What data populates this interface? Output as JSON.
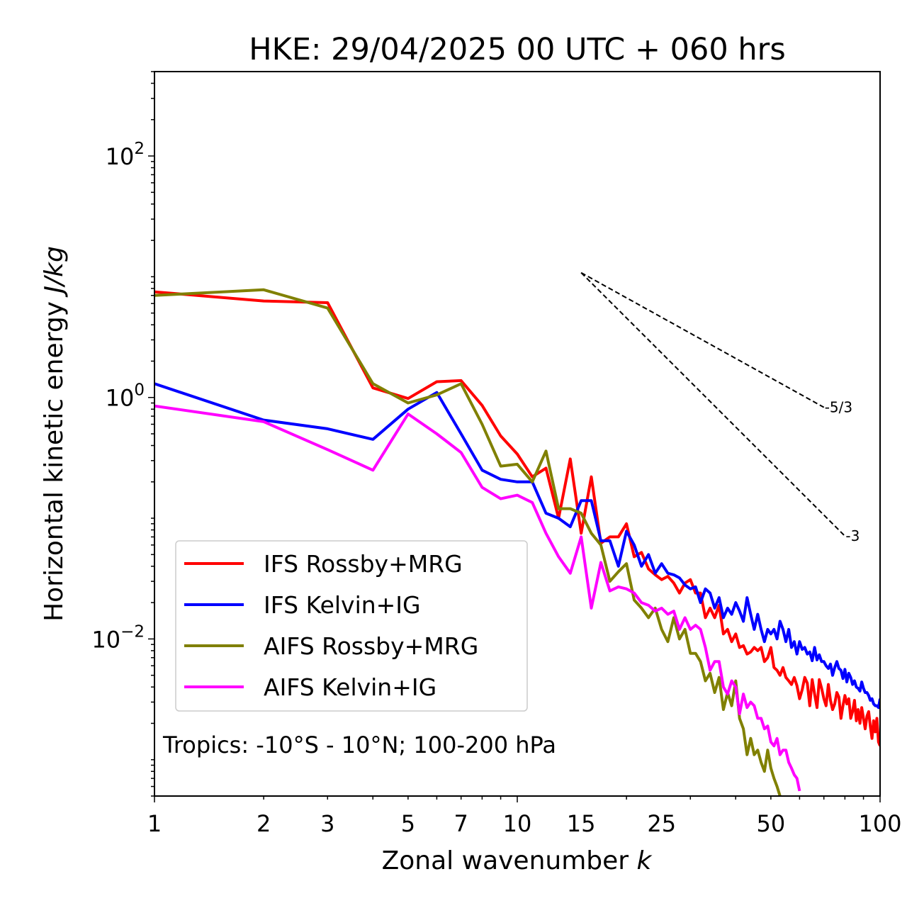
{
  "chart_data": {
    "type": "line",
    "title": "HKE: 29/04/2025 00 UTC + 060 hrs",
    "xlabel": "Zonal wavenumber",
    "xlabel_symbol": "k",
    "ylabel": "Horizontal kinetic energy",
    "ylabel_unit": "J/kg",
    "x_scale": "log",
    "y_scale": "log",
    "xlim": [
      1,
      100
    ],
    "ylim": [
      0.0005,
      500
    ],
    "x_ticks": [
      {
        "value": 1,
        "label": "1"
      },
      {
        "value": 2,
        "label": "2"
      },
      {
        "value": 3,
        "label": "3"
      },
      {
        "value": 5,
        "label": "5"
      },
      {
        "value": 7,
        "label": "7"
      },
      {
        "value": 10,
        "label": "10"
      },
      {
        "value": 15,
        "label": "15"
      },
      {
        "value": 25,
        "label": "25"
      },
      {
        "value": 50,
        "label": "50"
      },
      {
        "value": 100,
        "label": "100"
      }
    ],
    "y_ticks": [
      {
        "value": 100,
        "mantissa": "10",
        "exponent": "2"
      },
      {
        "value": 1,
        "mantissa": "10",
        "exponent": "0"
      },
      {
        "value": 0.01,
        "mantissa": "10",
        "exponent": "−2"
      }
    ],
    "grid": false,
    "legend_position": "lower-left",
    "annotation": "Tropics: -10°S - 10°N; 100-200 hPa",
    "reference_slopes": [
      {
        "label": "-5/3",
        "exponent": -1.6667,
        "x": [
          15,
          70
        ],
        "y0": 10.8
      },
      {
        "label": "-3",
        "exponent": -3,
        "x": [
          15,
          80
        ],
        "y0": 10.8
      }
    ],
    "series": [
      {
        "name": "IFS Rossby+MRG",
        "color": "#ff0000",
        "x": [
          1,
          2,
          3,
          4,
          5,
          6,
          7,
          8,
          9,
          10,
          11,
          12,
          13,
          14,
          15,
          16,
          17,
          18,
          19,
          20,
          21,
          22,
          23,
          24,
          25,
          26,
          27,
          28,
          29,
          30,
          31,
          32,
          33,
          34,
          35,
          36,
          37,
          38,
          39,
          40,
          41,
          42,
          43,
          44,
          45,
          46,
          47,
          48,
          49,
          50,
          51,
          52,
          53,
          54,
          55,
          56,
          57,
          58,
          59,
          60,
          61,
          62,
          63,
          64,
          65,
          66,
          67,
          68,
          69,
          70,
          71,
          72,
          73,
          74,
          75,
          76,
          77,
          78,
          79,
          80,
          81,
          82,
          83,
          84,
          85,
          86,
          87,
          88,
          89,
          90,
          91,
          92,
          93,
          94,
          95,
          96,
          97,
          98,
          99,
          100
        ],
        "y": [
          7.5,
          6.3,
          6.1,
          1.2,
          0.98,
          1.35,
          1.38,
          0.86,
          0.48,
          0.34,
          0.22,
          0.26,
          0.1,
          0.31,
          0.075,
          0.22,
          0.062,
          0.07,
          0.07,
          0.09,
          0.048,
          0.052,
          0.038,
          0.034,
          0.031,
          0.033,
          0.029,
          0.024,
          0.029,
          0.031,
          0.024,
          0.024,
          0.015,
          0.018,
          0.015,
          0.019,
          0.011,
          0.012,
          0.0095,
          0.011,
          0.0085,
          0.0088,
          0.0075,
          0.0078,
          0.0085,
          0.008,
          0.0085,
          0.0065,
          0.007,
          0.0085,
          0.0058,
          0.0055,
          0.005,
          0.0058,
          0.0048,
          0.0045,
          0.0042,
          0.0048,
          0.0041,
          0.0032,
          0.0038,
          0.0048,
          0.0043,
          0.0028,
          0.0046,
          0.0035,
          0.0027,
          0.0046,
          0.0039,
          0.0032,
          0.0028,
          0.0042,
          0.0031,
          0.0026,
          0.0029,
          0.0036,
          0.0033,
          0.0022,
          0.0028,
          0.0034,
          0.0029,
          0.0032,
          0.0022,
          0.0025,
          0.0031,
          0.0021,
          0.0026,
          0.002,
          0.0027,
          0.0022,
          0.0018,
          0.0023,
          0.0025,
          0.0019,
          0.0015,
          0.0021,
          0.0017,
          0.0022,
          0.0014,
          0.0013
        ]
      },
      {
        "name": "IFS Kelvin+IG",
        "color": "#0000ff",
        "x": [
          1,
          2,
          3,
          4,
          5,
          6,
          7,
          8,
          9,
          10,
          11,
          12,
          13,
          14,
          15,
          16,
          17,
          18,
          19,
          20,
          21,
          22,
          23,
          24,
          25,
          26,
          27,
          28,
          29,
          30,
          31,
          32,
          33,
          34,
          35,
          36,
          37,
          38,
          39,
          40,
          41,
          42,
          43,
          44,
          45,
          46,
          47,
          48,
          49,
          50,
          51,
          52,
          53,
          54,
          55,
          56,
          57,
          58,
          59,
          60,
          61,
          62,
          63,
          64,
          65,
          66,
          67,
          68,
          69,
          70,
          71,
          72,
          73,
          74,
          75,
          76,
          77,
          78,
          79,
          80,
          81,
          82,
          83,
          84,
          85,
          86,
          87,
          88,
          89,
          90,
          91,
          92,
          93,
          94,
          95,
          96,
          97,
          98,
          99,
          100
        ],
        "y": [
          1.3,
          0.65,
          0.55,
          0.45,
          0.8,
          1.1,
          0.5,
          0.25,
          0.21,
          0.2,
          0.2,
          0.11,
          0.1,
          0.085,
          0.14,
          0.14,
          0.065,
          0.065,
          0.04,
          0.078,
          0.06,
          0.04,
          0.05,
          0.035,
          0.042,
          0.035,
          0.034,
          0.032,
          0.028,
          0.026,
          0.027,
          0.02,
          0.026,
          0.024,
          0.018,
          0.022,
          0.015,
          0.018,
          0.016,
          0.02,
          0.017,
          0.014,
          0.022,
          0.016,
          0.012,
          0.016,
          0.012,
          0.0095,
          0.012,
          0.011,
          0.012,
          0.01,
          0.014,
          0.012,
          0.0095,
          0.012,
          0.0085,
          0.0095,
          0.0075,
          0.0095,
          0.0082,
          0.0085,
          0.0075,
          0.0078,
          0.0066,
          0.0085,
          0.0067,
          0.0074,
          0.0065,
          0.0065,
          0.006,
          0.0057,
          0.0062,
          0.005,
          0.0058,
          0.0065,
          0.0057,
          0.0055,
          0.0047,
          0.0056,
          0.0044,
          0.0052,
          0.0048,
          0.0042,
          0.0045,
          0.004,
          0.0039,
          0.0037,
          0.0044,
          0.0039,
          0.0036,
          0.0036,
          0.0034,
          0.0031,
          0.0032,
          0.0029,
          0.0028,
          0.0028,
          0.0027,
          0.0032
        ]
      },
      {
        "name": "AIFS Rossby+MRG",
        "color": "#808000",
        "x": [
          1,
          2,
          3,
          4,
          5,
          6,
          7,
          8,
          9,
          10,
          11,
          12,
          13,
          14,
          15,
          16,
          17,
          18,
          19,
          20,
          21,
          22,
          23,
          24,
          25,
          26,
          27,
          28,
          29,
          30,
          31,
          32,
          33,
          34,
          35,
          36,
          37,
          38,
          39,
          40,
          41,
          42,
          43,
          44,
          45,
          46,
          47,
          48,
          49,
          50,
          51,
          52,
          53,
          54
        ],
        "y": [
          7.0,
          7.8,
          5.5,
          1.3,
          0.9,
          1.05,
          1.3,
          0.6,
          0.27,
          0.28,
          0.2,
          0.36,
          0.12,
          0.12,
          0.11,
          0.075,
          0.06,
          0.03,
          0.036,
          0.042,
          0.021,
          0.018,
          0.015,
          0.018,
          0.012,
          0.0095,
          0.015,
          0.01,
          0.012,
          0.0076,
          0.0076,
          0.0065,
          0.0045,
          0.0052,
          0.0036,
          0.0048,
          0.0026,
          0.0036,
          0.0028,
          0.0045,
          0.0022,
          0.0018,
          0.0011,
          0.0015,
          0.0011,
          0.0012,
          0.00095,
          0.0008,
          0.0012,
          0.00085,
          0.0007,
          0.0006,
          0.0005,
          0.00045
        ]
      },
      {
        "name": "AIFS Kelvin+IG",
        "color": "#ff00ff",
        "x": [
          1,
          2,
          3,
          4,
          5,
          6,
          7,
          8,
          9,
          10,
          11,
          12,
          13,
          14,
          15,
          16,
          17,
          18,
          19,
          20,
          21,
          22,
          23,
          24,
          25,
          26,
          27,
          28,
          29,
          30,
          31,
          32,
          33,
          34,
          35,
          36,
          37,
          38,
          39,
          40,
          41,
          42,
          43,
          44,
          45,
          46,
          47,
          48,
          49,
          50,
          51,
          52,
          53,
          54,
          55,
          56,
          57,
          58,
          59,
          60
        ],
        "y": [
          0.85,
          0.63,
          0.37,
          0.25,
          0.73,
          0.5,
          0.35,
          0.18,
          0.145,
          0.155,
          0.135,
          0.075,
          0.048,
          0.035,
          0.07,
          0.018,
          0.043,
          0.025,
          0.027,
          0.026,
          0.024,
          0.02,
          0.019,
          0.017,
          0.018,
          0.016,
          0.017,
          0.012,
          0.015,
          0.012,
          0.013,
          0.012,
          0.0085,
          0.0055,
          0.0065,
          0.0065,
          0.004,
          0.0035,
          0.0045,
          0.004,
          0.0024,
          0.0035,
          0.0027,
          0.003,
          0.0028,
          0.0022,
          0.0022,
          0.0018,
          0.0019,
          0.0014,
          0.0013,
          0.0015,
          0.0011,
          0.0012,
          0.0012,
          0.00095,
          0.00085,
          0.00075,
          0.0007,
          0.00055
        ]
      }
    ]
  }
}
